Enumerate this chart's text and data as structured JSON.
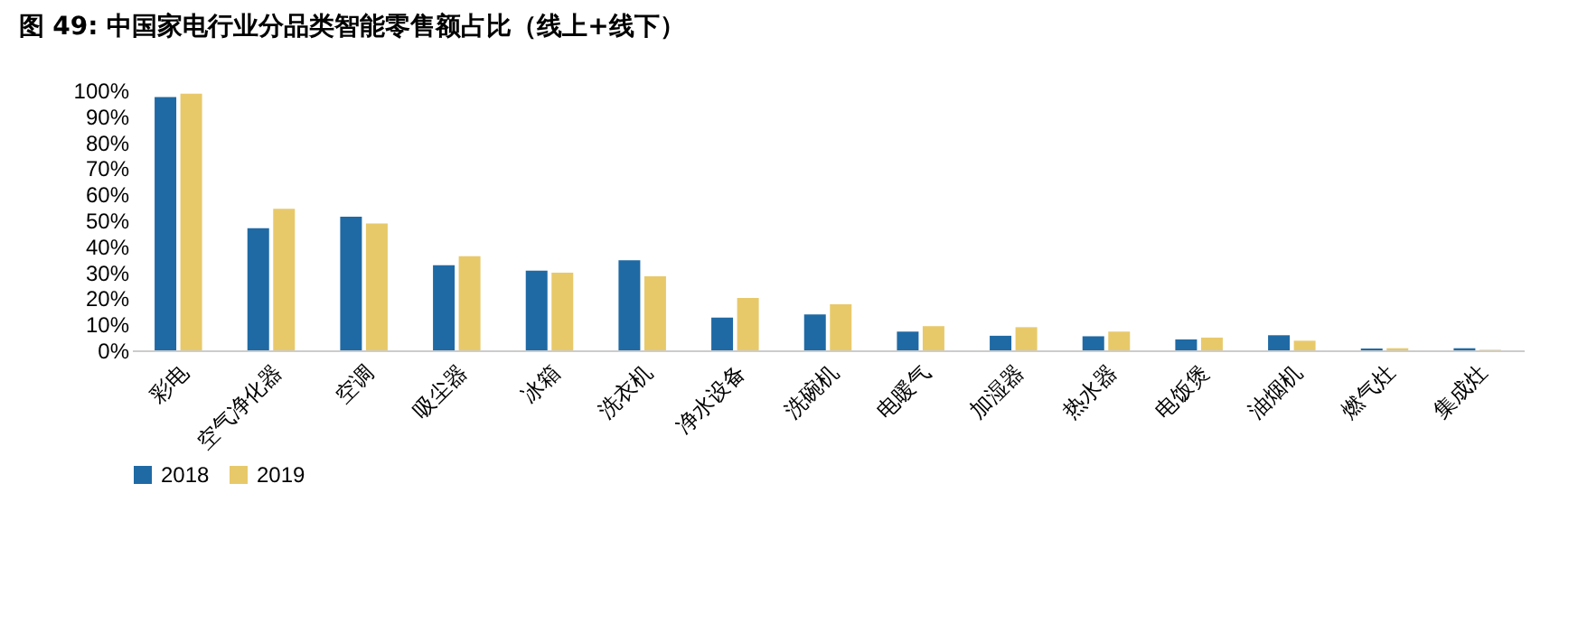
{
  "chart_data": {
    "type": "bar",
    "title": "图 49:  中国家电行业分品类智能零售额占比（线上+线下）",
    "categories": [
      "彩电",
      "空气净化器",
      "空调",
      "吸尘器",
      "冰箱",
      "洗衣机",
      "净水设备",
      "洗碗机",
      "电暖气",
      "加湿器",
      "热水器",
      "电饭煲",
      "油烟机",
      "燃气灶",
      "集成灶"
    ],
    "series": [
      {
        "name": "2018",
        "color": "#1f6aa5",
        "values": [
          97.4,
          47,
          51.4,
          32.7,
          30.6,
          34.6,
          12.6,
          13.8,
          7.2,
          5.6,
          5.4,
          4.2,
          5.8,
          0.7,
          0.8
        ]
      },
      {
        "name": "2019",
        "color": "#e8c96a",
        "values": [
          98.7,
          54.4,
          48.8,
          36.2,
          29.9,
          28.5,
          20.1,
          17.7,
          9.3,
          8.9,
          7.2,
          4.9,
          3.7,
          0.8,
          0.2
        ]
      }
    ],
    "ylim": [
      0,
      100
    ],
    "yticks": [
      {
        "value": 0,
        "label": "0%"
      },
      {
        "value": 10,
        "label": "10%"
      },
      {
        "value": 20,
        "label": "20%"
      },
      {
        "value": 30,
        "label": "30%"
      },
      {
        "value": 40,
        "label": "40%"
      },
      {
        "value": 50,
        "label": "50%"
      },
      {
        "value": 60,
        "label": "60%"
      },
      {
        "value": 70,
        "label": "70%"
      },
      {
        "value": 80,
        "label": "80%"
      },
      {
        "value": 90,
        "label": "90%"
      },
      {
        "value": 100,
        "label": "100%"
      }
    ],
    "grid": false,
    "legend": "bottom"
  }
}
